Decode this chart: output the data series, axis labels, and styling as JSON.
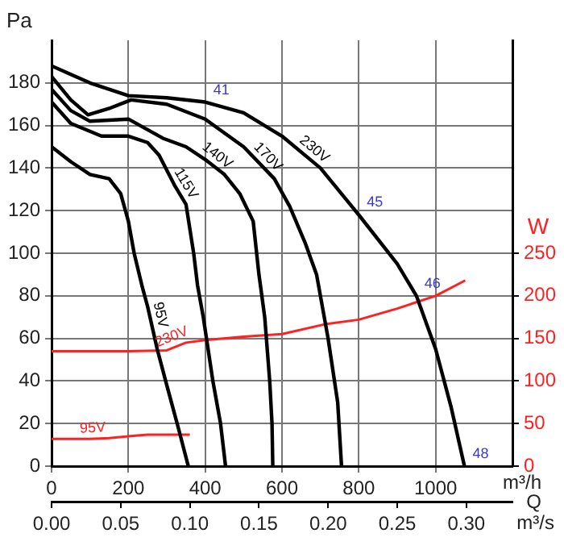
{
  "chart_data": {
    "type": "line",
    "xlabel": "m³/h",
    "x2label": "m³/s",
    "ylabel": "Pa",
    "y2label": "W",
    "xlim": [
      0,
      1200
    ],
    "xticks": [
      0,
      200,
      400,
      600,
      800,
      1000
    ],
    "x2lim": [
      0,
      0.3333
    ],
    "x2ticks": [
      {
        "value": 0,
        "label": "0.00"
      },
      0.05,
      {
        "value": 0.1,
        "label": "0.10"
      },
      0.15,
      {
        "value": 0.2,
        "label": "0.20"
      },
      0.25,
      {
        "value": 0.3,
        "label": "0.30"
      }
    ],
    "ylim": [
      0,
      200
    ],
    "yticks": [
      0,
      20,
      40,
      60,
      80,
      100,
      120,
      140,
      160,
      180
    ],
    "y2lim": [
      0,
      500
    ],
    "y2ticks": [
      0,
      50,
      100,
      150,
      200,
      250
    ],
    "grid": true,
    "legend": false,
    "marker": "none",
    "line_style": "solid",
    "series": [
      {
        "name": "230V",
        "color": "#000000",
        "x": [
          0,
          50,
          100,
          200,
          300,
          400,
          500,
          600,
          700,
          800,
          900,
          950,
          1000,
          1040,
          1075
        ],
        "values": [
          188,
          184,
          180,
          174,
          173,
          171,
          166,
          155,
          140,
          118,
          95,
          80,
          55,
          28,
          0
        ]
      },
      {
        "name": "170V",
        "color": "#000000",
        "x": [
          0,
          50,
          95,
          150,
          207,
          300,
          400,
          500,
          580,
          620,
          660,
          690,
          720,
          745,
          755
        ],
        "values": [
          183,
          172,
          165,
          168,
          172,
          170,
          163,
          150,
          135,
          122,
          105,
          90,
          60,
          30,
          0
        ]
      },
      {
        "name": "140V",
        "color": "#000000",
        "x": [
          0,
          50,
          100,
          200,
          290,
          350,
          400,
          450,
          490,
          525,
          540,
          555,
          568,
          574,
          576
        ],
        "values": [
          177,
          167,
          162,
          163,
          154,
          150,
          144,
          137,
          128,
          115,
          90,
          70,
          40,
          20,
          0
        ]
      },
      {
        "name": "115V",
        "color": "#000000",
        "x": [
          0,
          50,
          130,
          200,
          250,
          280,
          320,
          350,
          370,
          380,
          395,
          420,
          440,
          453
        ],
        "values": [
          171,
          161,
          155,
          155,
          152,
          146,
          132,
          123,
          100,
          85,
          70,
          40,
          20,
          0
        ]
      },
      {
        "name": "95V",
        "color": "#000000",
        "x": [
          0,
          50,
          100,
          150,
          180,
          200,
          215,
          235,
          250,
          275,
          300,
          330,
          356
        ],
        "values": [
          150,
          143,
          137,
          135,
          128,
          115,
          100,
          85,
          75,
          55,
          38,
          18,
          0
        ]
      },
      {
        "name": "230V",
        "color": "#ff2020",
        "axis": "y2",
        "x": [
          0,
          100,
          200,
          300,
          350,
          400,
          500,
          600,
          716,
          800,
          900,
          1000,
          1077
        ],
        "values": [
          135,
          135,
          135,
          136,
          145,
          148,
          152,
          155,
          167,
          172,
          185,
          200,
          218
        ]
      },
      {
        "name": "95V",
        "color": "#ff2020",
        "axis": "y2",
        "x": [
          0,
          100,
          150,
          200,
          250,
          360
        ],
        "values": [
          32,
          32,
          33,
          35,
          37,
          37
        ]
      }
    ],
    "annotations": [
      {
        "text": "41",
        "x": 400,
        "y": 171
      },
      {
        "text": "45",
        "x": 800,
        "y": 118
      },
      {
        "text": "46",
        "x": 950,
        "y": 80
      },
      {
        "text": "48",
        "x": 1075,
        "y": 0
      },
      "Q"
    ]
  }
}
